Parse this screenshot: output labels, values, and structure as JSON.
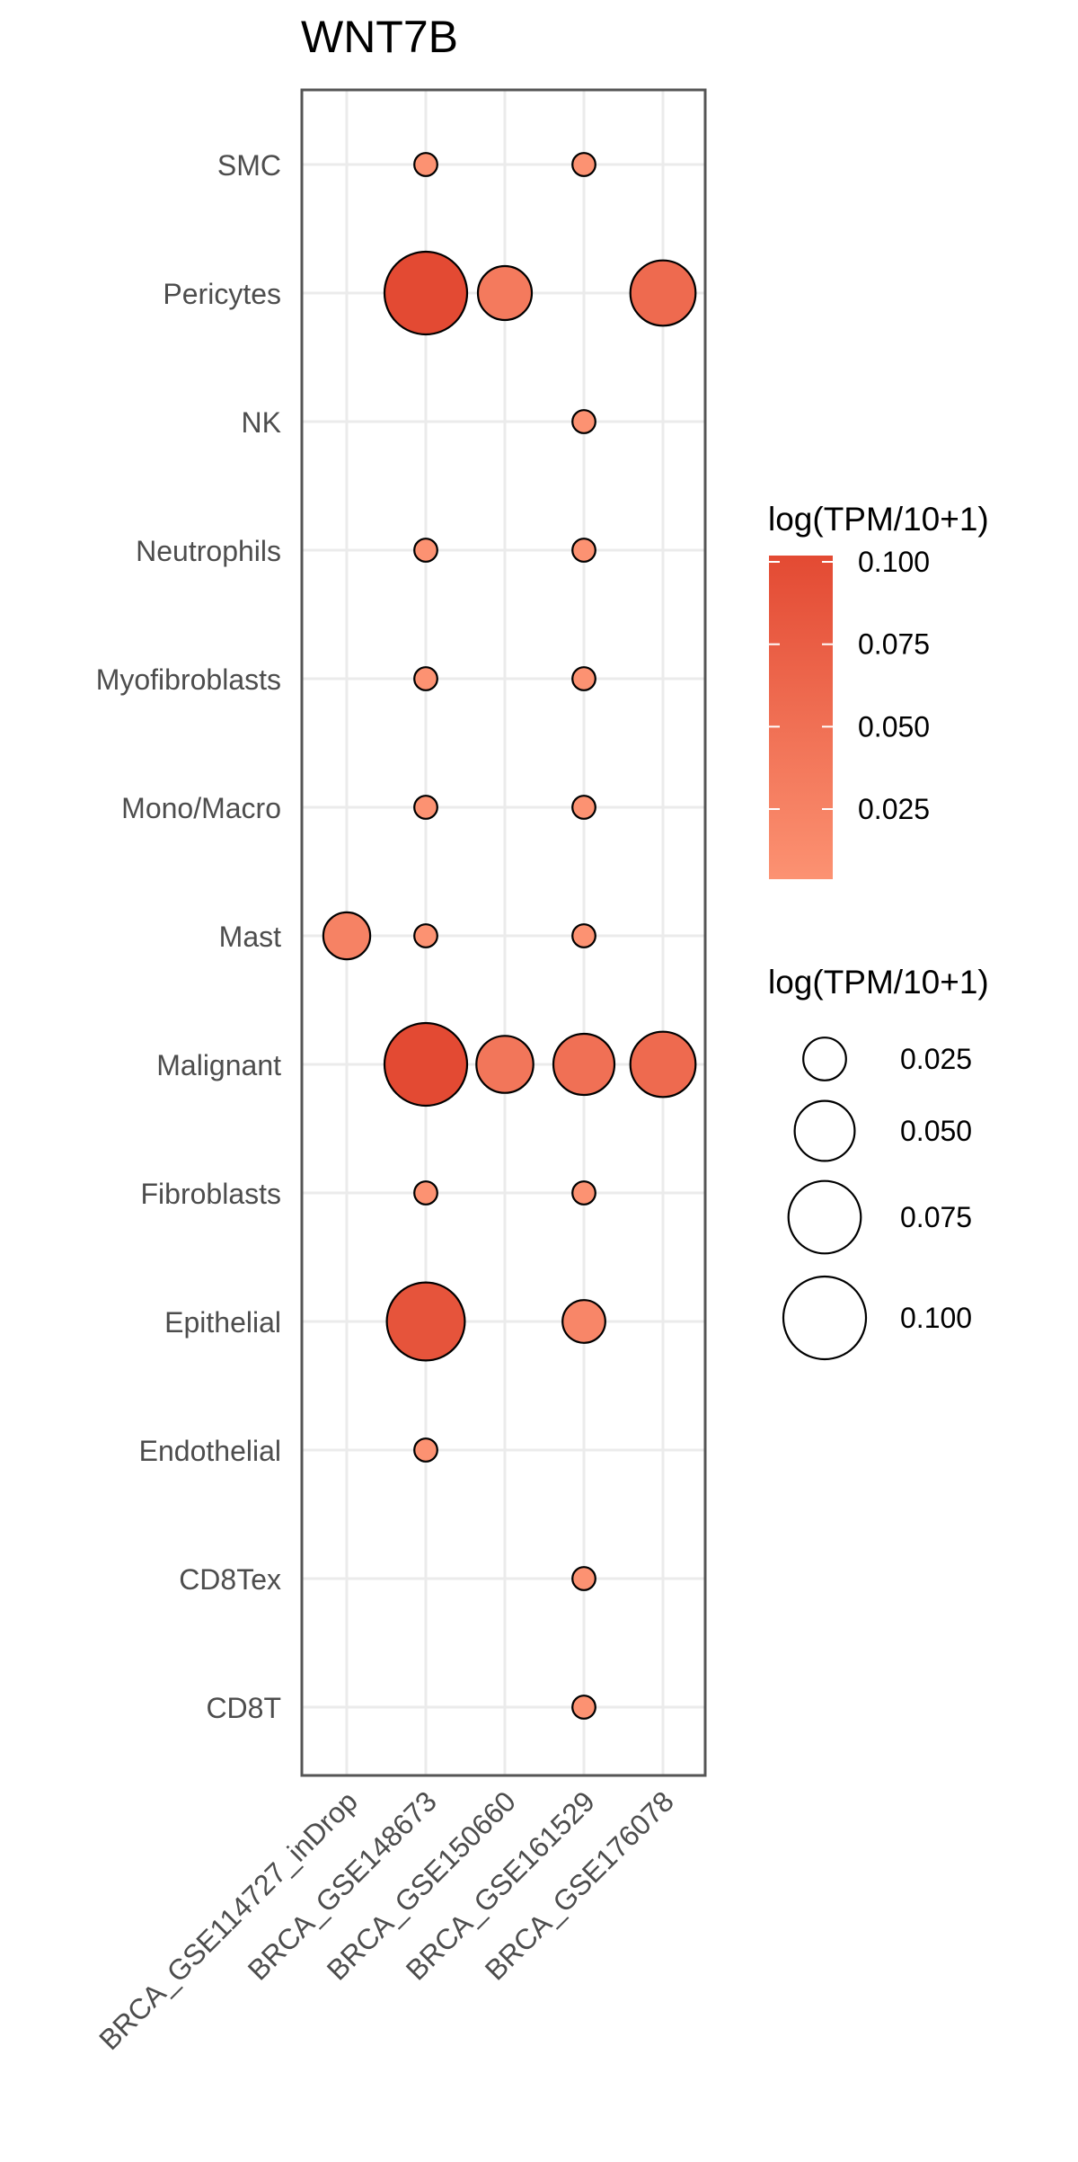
{
  "chart_data": {
    "type": "scatter",
    "title": "WNT7B",
    "x_categories": [
      "BRCA_GSE114727_inDrop",
      "BRCA_GSE148673",
      "BRCA_GSE150660",
      "BRCA_GSE161529",
      "BRCA_GSE176078"
    ],
    "y_categories": [
      "SMC",
      "Pericytes",
      "NK",
      "Neutrophils",
      "Myofibroblasts",
      "Mono/Macro",
      "Mast",
      "Malignant",
      "Fibroblasts",
      "Epithelial",
      "Endothelial",
      "CD8Tex",
      "CD8T"
    ],
    "points": [
      {
        "x": "BRCA_GSE148673",
        "y": "SMC",
        "value": 0.01
      },
      {
        "x": "BRCA_GSE161529",
        "y": "SMC",
        "value": 0.01
      },
      {
        "x": "BRCA_GSE148673",
        "y": "Pericytes",
        "value": 0.1
      },
      {
        "x": "BRCA_GSE150660",
        "y": "Pericytes",
        "value": 0.04
      },
      {
        "x": "BRCA_GSE176078",
        "y": "Pericytes",
        "value": 0.06
      },
      {
        "x": "BRCA_GSE161529",
        "y": "NK",
        "value": 0.01
      },
      {
        "x": "BRCA_GSE148673",
        "y": "Neutrophils",
        "value": 0.01
      },
      {
        "x": "BRCA_GSE161529",
        "y": "Neutrophils",
        "value": 0.01
      },
      {
        "x": "BRCA_GSE148673",
        "y": "Myofibroblasts",
        "value": 0.01
      },
      {
        "x": "BRCA_GSE161529",
        "y": "Myofibroblasts",
        "value": 0.01
      },
      {
        "x": "BRCA_GSE148673",
        "y": "Mono/Macro",
        "value": 0.01
      },
      {
        "x": "BRCA_GSE161529",
        "y": "Mono/Macro",
        "value": 0.01
      },
      {
        "x": "BRCA_GSE114727_inDrop",
        "y": "Mast",
        "value": 0.03
      },
      {
        "x": "BRCA_GSE148673",
        "y": "Mast",
        "value": 0.01
      },
      {
        "x": "BRCA_GSE161529",
        "y": "Mast",
        "value": 0.01
      },
      {
        "x": "BRCA_GSE148673",
        "y": "Malignant",
        "value": 0.1
      },
      {
        "x": "BRCA_GSE150660",
        "y": "Malignant",
        "value": 0.045
      },
      {
        "x": "BRCA_GSE161529",
        "y": "Malignant",
        "value": 0.052
      },
      {
        "x": "BRCA_GSE176078",
        "y": "Malignant",
        "value": 0.06
      },
      {
        "x": "BRCA_GSE148673",
        "y": "Fibroblasts",
        "value": 0.01
      },
      {
        "x": "BRCA_GSE161529",
        "y": "Fibroblasts",
        "value": 0.01
      },
      {
        "x": "BRCA_GSE148673",
        "y": "Epithelial",
        "value": 0.088
      },
      {
        "x": "BRCA_GSE161529",
        "y": "Epithelial",
        "value": 0.025
      },
      {
        "x": "BRCA_GSE148673",
        "y": "Endothelial",
        "value": 0.01
      },
      {
        "x": "BRCA_GSE161529",
        "y": "CD8Tex",
        "value": 0.01
      },
      {
        "x": "BRCA_GSE161529",
        "y": "CD8T",
        "value": 0.01
      }
    ],
    "color_legend": {
      "title": "log(TPM/10+1)",
      "ticks": [
        "0.100",
        "0.075",
        "0.050",
        "0.025"
      ],
      "domain": [
        0.01,
        0.1
      ],
      "low_color": "#FC9272",
      "high_color": "#E34A33"
    },
    "size_legend": {
      "title": "log(TPM/10+1)",
      "entries": [
        {
          "label": "0.025",
          "value": 0.025
        },
        {
          "label": "0.050",
          "value": 0.05
        },
        {
          "label": "0.075",
          "value": 0.075
        },
        {
          "label": "0.100",
          "value": 0.1
        }
      ]
    },
    "grid": true,
    "legend_position": "right"
  }
}
